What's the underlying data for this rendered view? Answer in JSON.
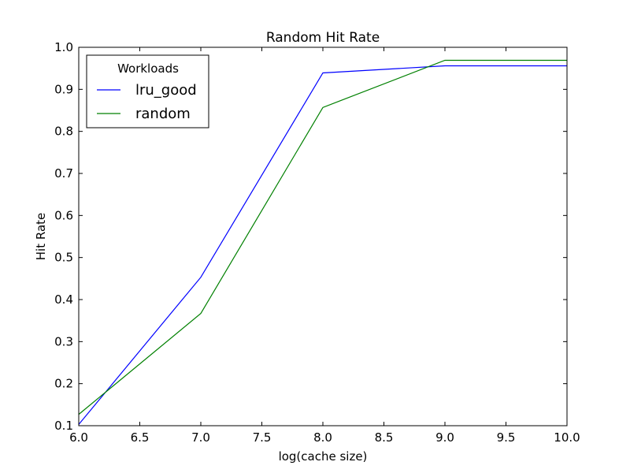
{
  "chart_data": {
    "type": "line",
    "title": "Random Hit Rate",
    "xlabel": "log(cache size)",
    "ylabel": "Hit Rate",
    "xlim": [
      6.0,
      10.0
    ],
    "ylim": [
      0.1,
      1.0
    ],
    "xticks": [
      "6.0",
      "6.5",
      "7.0",
      "7.5",
      "8.0",
      "8.5",
      "9.0",
      "9.5",
      "10.0"
    ],
    "yticks": [
      "0.1",
      "0.2",
      "0.3",
      "0.4",
      "0.5",
      "0.6",
      "0.7",
      "0.8",
      "0.9",
      "1.0"
    ],
    "x": [
      6,
      7,
      8,
      9,
      10
    ],
    "series": [
      {
        "name": "lru_good",
        "color": "#0000ff",
        "values": [
          0.103,
          0.453,
          0.939,
          0.956,
          0.956
        ]
      },
      {
        "name": "random",
        "color": "#008000",
        "values": [
          0.127,
          0.367,
          0.857,
          0.969,
          0.969
        ]
      }
    ],
    "legend": {
      "title": "Workloads",
      "position": "top-left"
    },
    "grid": false
  }
}
